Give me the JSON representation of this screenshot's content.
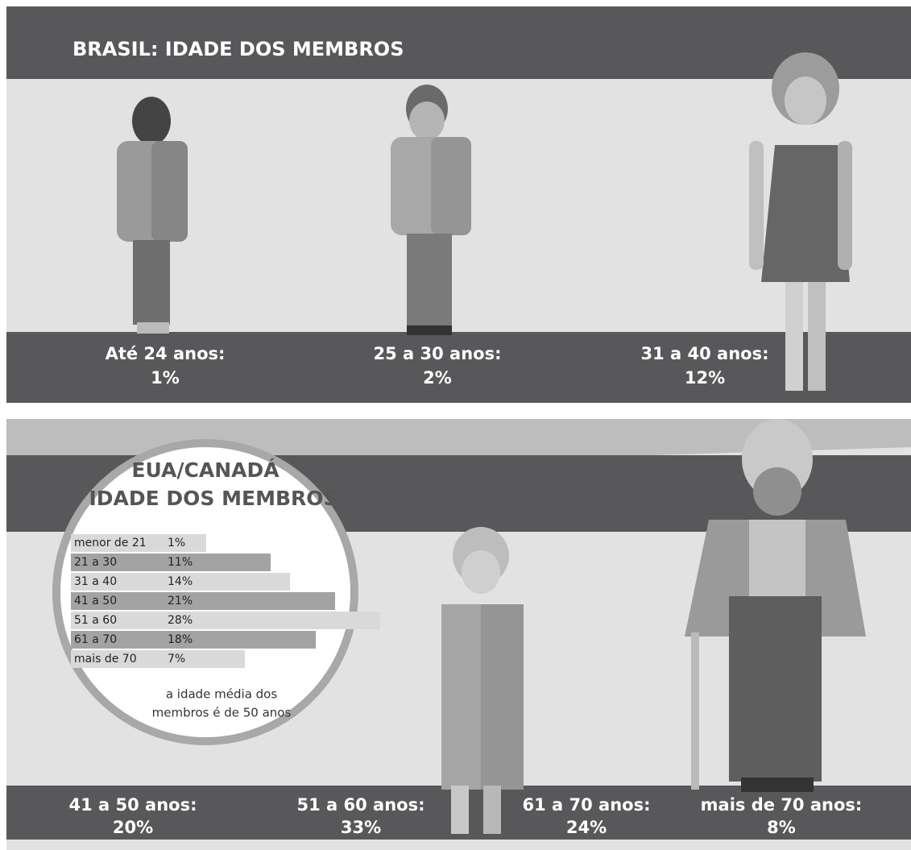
{
  "brasil": {
    "title": "BRASIL: IDADE DOS MEMBROS",
    "groups": [
      {
        "label": "Até 24 anos:",
        "value": "1%"
      },
      {
        "label": "25 a 30 anos:",
        "value": "2%"
      },
      {
        "label": "31 a 40 anos:",
        "value": "12%"
      }
    ]
  },
  "eua": {
    "groups": [
      {
        "label": "41 a 50 anos:",
        "value": "20%"
      },
      {
        "label": "51 a 60 anos:",
        "value": "33%"
      },
      {
        "label": "61 a 70 anos:",
        "value": "24%"
      },
      {
        "label": "mais de 70 anos:",
        "value": "8%"
      }
    ]
  },
  "chart_data": {
    "type": "bar",
    "title": "EUA/CANADÁ",
    "subtitle": "IDADE DOS MEMBROS",
    "categories": [
      "menor de 21",
      "21 a 30",
      "31 a 40",
      "41 a 50",
      "51 a 60",
      "61 a 70",
      "mais de 70"
    ],
    "values": [
      1,
      11,
      14,
      21,
      28,
      18,
      7
    ],
    "value_labels": [
      "1%",
      "11%",
      "14%",
      "21%",
      "28%",
      "18%",
      "7%"
    ],
    "colors": [
      "#d9d9d9",
      "#a3a3a3"
    ],
    "annotation": [
      "a idade média dos",
      "membros é de 50 anos"
    ]
  }
}
